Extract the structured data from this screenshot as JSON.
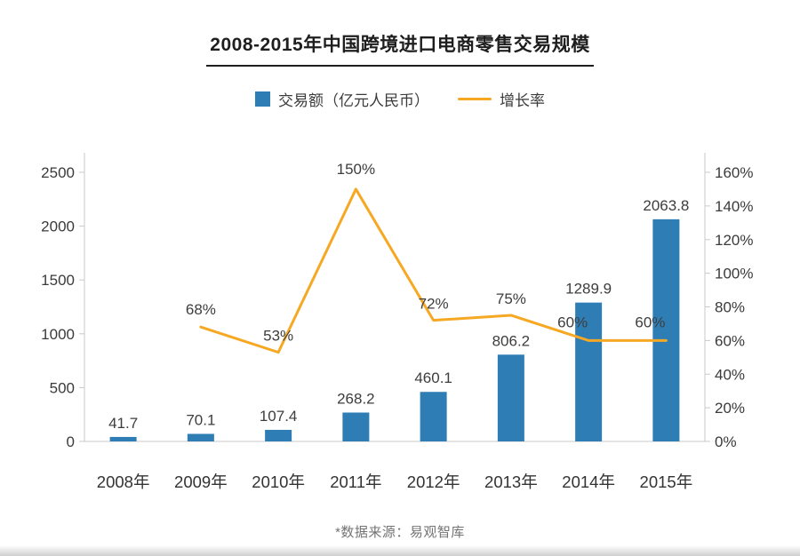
{
  "title": "2008-2015年中国跨境进口电商零售交易规模",
  "legend": [
    {
      "label": "交易额（亿元人民币）",
      "type": "bar",
      "color": "#2e7eb5"
    },
    {
      "label": "增长率",
      "type": "line",
      "color": "#f7a823"
    }
  ],
  "footer": "*数据来源：易观智库",
  "chart_data": {
    "type": "bar",
    "subtype": "bar+line combo",
    "title": "2008-2015年中国跨境进口电商零售交易规模",
    "categories": [
      "2008年",
      "2009年",
      "2010年",
      "2011年",
      "2012年",
      "2013年",
      "2014年",
      "2015年"
    ],
    "series": [
      {
        "name": "交易额（亿元人民币）",
        "type": "bar",
        "axis": "left",
        "color": "#2e7eb5",
        "values": [
          41.7,
          70.1,
          107.4,
          268.2,
          460.1,
          806.2,
          1289.9,
          2063.8
        ],
        "labels": [
          "41.7",
          "70.1",
          "107.4",
          "268.2",
          "460.1",
          "806.2",
          "1289.9",
          "2063.8"
        ]
      },
      {
        "name": "增长率",
        "type": "line",
        "axis": "right",
        "color": "#f7a823",
        "values": [
          null,
          68,
          53,
          150,
          72,
          75,
          60,
          60
        ],
        "labels": [
          "",
          "68%",
          "53%",
          "150%",
          "72%",
          "75%",
          "60%",
          "60%"
        ]
      }
    ],
    "left_axis": {
      "min": 0,
      "max": 2500,
      "ticks": [
        "0",
        "500",
        "1000",
        "1500",
        "2000",
        "2500"
      ]
    },
    "right_axis": {
      "min": 0,
      "max": 160,
      "ticks": [
        "0%",
        "20%",
        "40%",
        "60%",
        "80%",
        "100%",
        "120%",
        "140%",
        "160%"
      ]
    },
    "grid": false,
    "legend_position": "top",
    "source_note": "*数据来源：易观智库"
  }
}
